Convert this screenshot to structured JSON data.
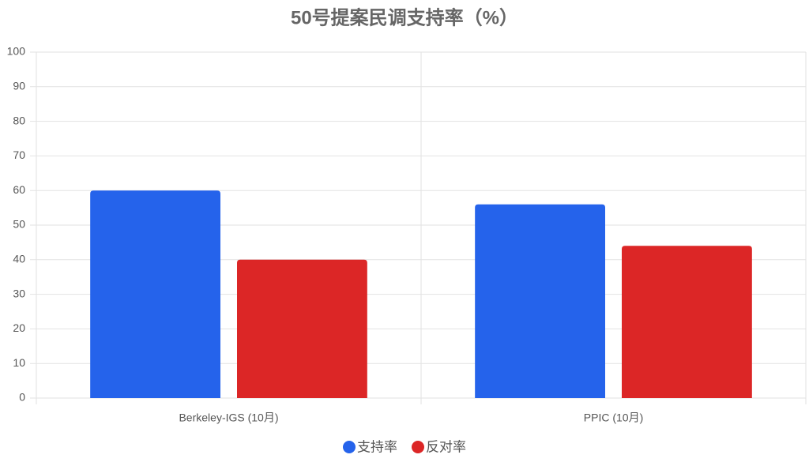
{
  "chart_data": {
    "type": "bar",
    "title": "50号提案民调支持率（%）",
    "categories": [
      "Berkeley-IGS (10月)",
      "PPIC (10月)"
    ],
    "series": [
      {
        "name": "支持率",
        "color": "#2563eb",
        "values": [
          60,
          56
        ]
      },
      {
        "name": "反对率",
        "color": "#dc2626",
        "values": [
          40,
          44
        ]
      }
    ],
    "ylim": [
      0,
      100
    ],
    "yticks": [
      0,
      10,
      20,
      30,
      40,
      50,
      60,
      70,
      80,
      90,
      100
    ],
    "grid": true,
    "legend": "bottom"
  }
}
